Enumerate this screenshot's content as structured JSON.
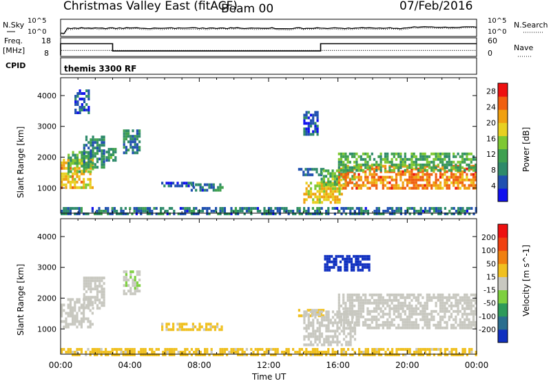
{
  "header": {
    "title": "Christmas Valley East (fitACF)",
    "beam": "Beam 00",
    "date": "07/Feb/2016"
  },
  "strip_sky": {
    "left_label": "N.Sky",
    "right_label": "N.Search",
    "left_ticks": [
      "10^5",
      "10^0"
    ],
    "right_ticks": [
      "10^5",
      "10^0"
    ]
  },
  "strip_freq": {
    "left_label_1": "Freq.",
    "left_label_2": "[MHz]",
    "right_label": "Nave",
    "left_ticks": [
      "18",
      "8"
    ],
    "right_ticks": [
      "60",
      "0"
    ],
    "freq_steps": [
      {
        "t0": 0.0,
        "t1": 3.0,
        "mhz": 15.5
      },
      {
        "t0": 3.0,
        "t1": 15.0,
        "mhz": 10.7
      },
      {
        "t0": 15.0,
        "t1": 24.0,
        "mhz": 15.5
      }
    ],
    "nave_level": 18
  },
  "cpid": {
    "label": "CPID",
    "value": "themis 3300 RF"
  },
  "time_axis": {
    "ticks": [
      "00:00",
      "04:00",
      "08:00",
      "12:00",
      "16:00",
      "20:00",
      "00:00"
    ],
    "label": "Time UT"
  },
  "chart_data": [
    {
      "type": "heatmap",
      "name": "power",
      "ylabel": "Slant Range [km]",
      "yticks": [
        "4000",
        "3000",
        "2000",
        "1000"
      ],
      "ylim": [
        180,
        4580
      ],
      "xlim": [
        0,
        24
      ],
      "colorbar": {
        "label": "Power [dB]",
        "ticks": [
          "28",
          "24",
          "20",
          "16",
          "12",
          "8",
          "4"
        ],
        "range": [
          0,
          30
        ],
        "colors": [
          "#1010ee",
          "#2050b0",
          "#2e8a6a",
          "#3fa050",
          "#7ec832",
          "#e8d020",
          "#f0a010",
          "#f06010",
          "#ee1010"
        ]
      },
      "regions": [
        {
          "t0": 0.0,
          "t1": 1.9,
          "r0": 1050,
          "r1": 1950,
          "p": 20
        },
        {
          "t0": 0.4,
          "t1": 1.8,
          "r0": 1500,
          "r1": 2200,
          "p": 13
        },
        {
          "t0": 1.3,
          "t1": 2.5,
          "r0": 1700,
          "r1": 2700,
          "p": 9
        },
        {
          "t0": 2.6,
          "t1": 3.2,
          "r0": 1900,
          "r1": 2300,
          "p": 10
        },
        {
          "t0": 3.6,
          "t1": 4.5,
          "r0": 2100,
          "r1": 2900,
          "p": 8
        },
        {
          "t0": 0.8,
          "t1": 1.6,
          "r0": 3400,
          "r1": 4200,
          "p": 5
        },
        {
          "t0": 5.8,
          "t1": 7.6,
          "r0": 1050,
          "r1": 1200,
          "p": 5
        },
        {
          "t0": 7.5,
          "t1": 9.3,
          "r0": 950,
          "r1": 1150,
          "p": 7
        },
        {
          "t0": 13.7,
          "t1": 15.2,
          "r0": 1450,
          "r1": 1650,
          "p": 7
        },
        {
          "t0": 14.0,
          "t1": 16.2,
          "r0": 500,
          "r1": 1200,
          "p": 19
        },
        {
          "t0": 15.0,
          "t1": 17.0,
          "r0": 1100,
          "r1": 1600,
          "p": 13
        },
        {
          "t0": 16.0,
          "t1": 24.0,
          "r0": 1000,
          "r1": 1750,
          "p": 23
        },
        {
          "t0": 16.0,
          "t1": 24.0,
          "r0": 1600,
          "r1": 2150,
          "p": 12
        },
        {
          "t0": 14.0,
          "t1": 14.8,
          "r0": 2700,
          "r1": 3500,
          "p": 5
        },
        {
          "t0": 0.0,
          "t1": 24.0,
          "r0": 180,
          "r1": 380,
          "p": 7
        }
      ]
    },
    {
      "type": "heatmap",
      "name": "velocity",
      "ylabel": "Slant Range [km]",
      "yticks": [
        "4000",
        "3000",
        "2000",
        "1000"
      ],
      "ylim": [
        180,
        4580
      ],
      "xlim": [
        0,
        24
      ],
      "colorbar": {
        "label": "Velocity [m s^-1]",
        "ticks": [
          "200",
          "100",
          "50",
          "15",
          "-15",
          "-50",
          "-100",
          "-200"
        ],
        "range": [
          -250,
          250
        ],
        "colors": [
          "#1030c0",
          "#2a6e8e",
          "#2e9a5a",
          "#7ed040",
          "#c8c8c0",
          "#f0c020",
          "#f08010",
          "#f04010",
          "#ee1010"
        ]
      },
      "regions": [
        {
          "t0": 0.0,
          "t1": 1.9,
          "r0": 1050,
          "r1": 2000,
          "v": 0
        },
        {
          "t0": 1.3,
          "t1": 2.5,
          "r0": 1700,
          "r1": 2700,
          "v": 0
        },
        {
          "t0": 3.6,
          "t1": 4.5,
          "r0": 2100,
          "r1": 2900,
          "v": -20
        },
        {
          "t0": 5.8,
          "t1": 9.3,
          "r0": 950,
          "r1": 1200,
          "v": 40
        },
        {
          "t0": 13.7,
          "t1": 15.2,
          "r0": 1450,
          "r1": 1650,
          "v": 40
        },
        {
          "t0": 14.0,
          "t1": 17.0,
          "r0": 500,
          "r1": 1600,
          "v": 0
        },
        {
          "t0": 16.0,
          "t1": 24.0,
          "r0": 1000,
          "r1": 2150,
          "v": 0
        },
        {
          "t0": 15.2,
          "t1": 17.8,
          "r0": 2900,
          "r1": 3400,
          "v": -220
        },
        {
          "t0": 0.0,
          "t1": 24.0,
          "r0": 180,
          "r1": 380,
          "v": 45
        }
      ]
    }
  ]
}
